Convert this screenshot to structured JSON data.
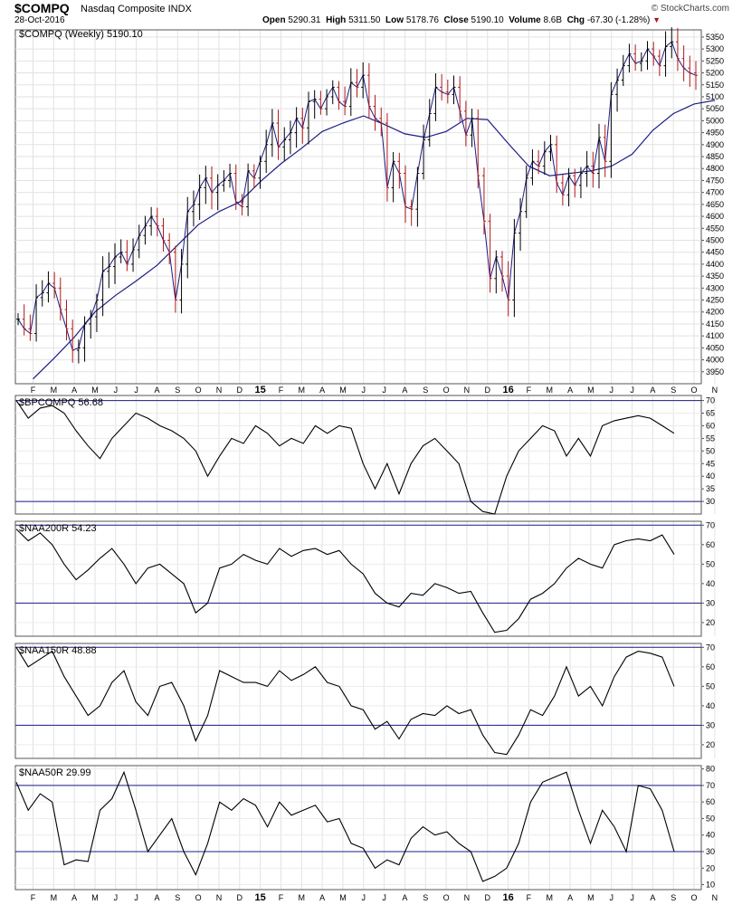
{
  "header": {
    "symbol": "$COMPQ",
    "name": "Nasdaq Composite INDX",
    "date": "28-Oct-2016",
    "brand": "© StockCharts.com",
    "open_label": "Open",
    "open": "5290.31",
    "high_label": "High",
    "high": "5311.50",
    "low_label": "Low",
    "low": "5178.76",
    "close_label": "Close",
    "close": "5190.10",
    "volume_label": "Volume",
    "volume": "8.6B",
    "chg_label": "Chg",
    "chg": "-67.30 (-1.28%)",
    "chg_icon": "down-triangle-icon"
  },
  "colors": {
    "up": "#000000",
    "down": "#b01818",
    "ma": "#1c1c86",
    "refline": "#1c1c86",
    "indicator": "#000000"
  },
  "x_axis": {
    "labels": [
      "F",
      "M",
      "A",
      "M",
      "J",
      "J",
      "A",
      "S",
      "O",
      "N",
      "D",
      "15",
      "F",
      "M",
      "A",
      "M",
      "J",
      "J",
      "A",
      "S",
      "O",
      "N",
      "D",
      "16",
      "F",
      "M",
      "A",
      "M",
      "J",
      "J",
      "A",
      "S",
      "O",
      "N"
    ],
    "bold_labels": [
      "15",
      "16"
    ]
  },
  "chart_data": [
    {
      "type": "ohlc",
      "title": "$COMPQ (Weekly) 5190.10",
      "series_name": "$COMPQ",
      "overlay": "weekly moving average",
      "ylim": [
        3900,
        5380
      ],
      "yticks": [
        3950,
        4000,
        4050,
        4100,
        4150,
        4200,
        4250,
        4300,
        4350,
        4400,
        4450,
        4500,
        4550,
        4600,
        4650,
        4700,
        4750,
        4800,
        4850,
        4900,
        4950,
        5000,
        5050,
        5100,
        5150,
        5200,
        5250,
        5300,
        5350
      ],
      "close": [
        4170,
        4130,
        4110,
        4260,
        4280,
        4320,
        4300,
        4210,
        4130,
        4040,
        4050,
        4150,
        4180,
        4250,
        4370,
        4390,
        4430,
        4450,
        4400,
        4460,
        4520,
        4560,
        4600,
        4560,
        4500,
        4450,
        4250,
        4400,
        4620,
        4650,
        4720,
        4760,
        4700,
        4730,
        4750,
        4780,
        4660,
        4640,
        4790,
        4760,
        4830,
        4900,
        4990,
        4890,
        4920,
        4950,
        5010,
        4970,
        5080,
        5090,
        5050,
        5100,
        5140,
        5080,
        5060,
        5160,
        5140,
        5190,
        5060,
        5010,
        4990,
        4720,
        4830,
        4780,
        4640,
        4630,
        4780,
        4920,
        5030,
        5140,
        5120,
        5110,
        5140,
        5040,
        4940,
        5010,
        4770,
        4580,
        4340,
        4430,
        4350,
        4250,
        4530,
        4620,
        4760,
        4830,
        4810,
        4870,
        4900,
        4740,
        4690,
        4770,
        4730,
        4780,
        4810,
        4780,
        4930,
        4830,
        5110,
        5170,
        5230,
        5280,
        5240,
        5250,
        5300,
        5270,
        5230,
        5310,
        5330,
        5260,
        5220,
        5200,
        5190
      ],
      "ma_start": [
        3920,
        4005,
        4095,
        4200,
        4270,
        4330,
        4395,
        4480,
        4565,
        4620,
        4660,
        4745,
        4820,
        4885,
        4955,
        4990,
        5020,
        4985,
        4945,
        4930,
        4955,
        5010,
        5005,
        4905,
        4810,
        4770,
        4780,
        4790,
        4810,
        4860,
        4960,
        5030,
        5070,
        5085
      ],
      "ma_note": ""
    },
    {
      "type": "line",
      "title": "$BPCOMPQ 56.68",
      "ylim": [
        25,
        72
      ],
      "yticks": [
        30,
        35,
        40,
        45,
        50,
        55,
        60,
        65,
        70
      ],
      "reference_lines": [
        30,
        70
      ],
      "values": [
        70,
        63,
        67,
        68,
        65,
        58,
        52,
        47,
        55,
        60,
        65,
        63,
        60,
        58,
        55,
        50,
        40,
        48,
        55,
        53,
        60,
        57,
        52,
        55,
        53,
        60,
        57,
        60,
        59,
        45,
        35,
        45,
        33,
        45,
        52,
        55,
        50,
        45,
        30,
        26,
        25,
        40,
        50,
        55,
        60,
        58,
        48,
        55,
        48,
        60,
        62,
        63,
        64,
        63,
        60,
        57
      ]
    },
    {
      "type": "line",
      "title": "$NAA200R 54.23",
      "ylim": [
        13,
        72
      ],
      "yticks": [
        20,
        30,
        40,
        50,
        60,
        70
      ],
      "reference_lines": [
        30,
        70
      ],
      "values": [
        68,
        62,
        66,
        60,
        50,
        42,
        47,
        53,
        58,
        50,
        40,
        48,
        50,
        45,
        40,
        25,
        30,
        48,
        50,
        55,
        52,
        50,
        58,
        54,
        57,
        58,
        55,
        57,
        50,
        45,
        35,
        30,
        28,
        35,
        34,
        40,
        38,
        35,
        36,
        25,
        15,
        16,
        22,
        32,
        35,
        40,
        48,
        53,
        50,
        48,
        60,
        62,
        63,
        62,
        65,
        55
      ]
    },
    {
      "type": "line",
      "title": "$NAA150R 48.88",
      "ylim": [
        13,
        72
      ],
      "yticks": [
        20,
        30,
        40,
        50,
        60,
        70
      ],
      "reference_lines": [
        30,
        70
      ],
      "values": [
        70,
        60,
        64,
        68,
        55,
        45,
        35,
        40,
        52,
        58,
        42,
        35,
        50,
        52,
        40,
        22,
        35,
        58,
        55,
        52,
        52,
        50,
        58,
        53,
        56,
        60,
        52,
        50,
        40,
        38,
        28,
        32,
        23,
        33,
        36,
        35,
        40,
        36,
        38,
        25,
        16,
        15,
        25,
        38,
        35,
        45,
        60,
        45,
        50,
        40,
        55,
        65,
        68,
        67,
        65,
        50
      ]
    },
    {
      "type": "line",
      "title": "$NAA50R 29.99",
      "ylim": [
        7,
        82
      ],
      "yticks": [
        10,
        20,
        30,
        40,
        50,
        60,
        70,
        80
      ],
      "reference_lines": [
        30,
        70
      ],
      "values": [
        72,
        55,
        65,
        60,
        22,
        25,
        24,
        55,
        62,
        78,
        55,
        30,
        40,
        50,
        30,
        16,
        35,
        60,
        55,
        62,
        58,
        45,
        60,
        52,
        55,
        58,
        48,
        50,
        35,
        32,
        20,
        25,
        22,
        38,
        45,
        40,
        42,
        35,
        30,
        12,
        15,
        20,
        35,
        60,
        72,
        75,
        78,
        55,
        35,
        55,
        45,
        30,
        70,
        68,
        55,
        30
      ]
    }
  ]
}
